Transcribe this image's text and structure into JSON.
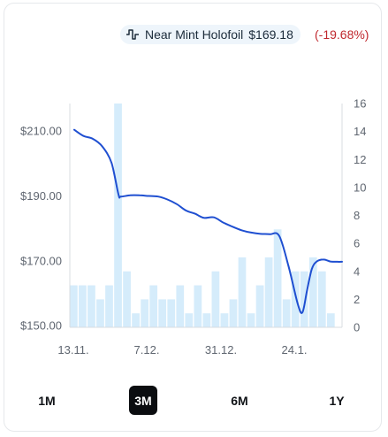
{
  "legend": {
    "name": "Near Mint Holofoil",
    "price": "$169.18",
    "change": "(-19.68%)",
    "icon": "price-line-icon",
    "accent_color": "#1f4fd1",
    "change_color": "#c0282e",
    "volume_color": "#d5ecfb"
  },
  "periods": [
    {
      "label": "1M",
      "active": false
    },
    {
      "label": "3M",
      "active": true
    },
    {
      "label": "6M",
      "active": false
    },
    {
      "label": "1Y",
      "active": false
    }
  ],
  "chart_data": {
    "type": "line",
    "x_tick_labels": [
      "13.11.",
      "7.12.",
      "31.12.",
      "24.1."
    ],
    "left_axis": {
      "tick_labels": [
        "$210.00",
        "$190.00",
        "$170.00",
        "$150.00"
      ],
      "tick_values": [
        210,
        190,
        170,
        150
      ],
      "range": [
        149.5,
        218.5
      ]
    },
    "right_axis": {
      "tick_labels": [
        "16",
        "14",
        "12",
        "10",
        "8",
        "6",
        "4",
        "2",
        "0"
      ],
      "tick_values": [
        16,
        14,
        12,
        10,
        8,
        6,
        4,
        2,
        0
      ],
      "range": [
        0,
        16
      ]
    },
    "series": [
      {
        "type": "line",
        "axis": "left",
        "x": [
          0,
          2,
          4,
          6,
          8,
          9.5,
          10,
          12,
          14,
          16,
          18,
          20,
          22,
          24,
          26,
          27,
          28,
          30,
          32,
          34,
          36,
          38,
          40,
          42,
          44,
          46,
          48,
          49,
          50,
          51,
          52,
          53.5,
          55,
          56.5,
          57.5
        ],
        "values": [
          210.4,
          208.5,
          207.6,
          205.3,
          200.2,
          190.4,
          189.8,
          190.2,
          190.2,
          190.0,
          189.8,
          188.9,
          187.5,
          185.5,
          184.5,
          183.7,
          183.2,
          183.4,
          181.8,
          180.5,
          179.4,
          178.7,
          178.3,
          178.2,
          177.7,
          168.4,
          156.7,
          154.1,
          161.0,
          167.4,
          169.7,
          170.4,
          169.8,
          169.7,
          169.7
        ]
      },
      {
        "type": "bar",
        "axis": "right",
        "values": [
          3,
          3,
          3,
          2,
          3,
          16,
          4,
          1,
          2,
          3,
          2,
          2,
          3,
          1,
          3,
          1,
          4,
          1,
          2,
          5,
          1,
          3,
          5,
          7,
          2,
          4,
          4,
          5,
          4,
          1
        ]
      }
    ]
  }
}
